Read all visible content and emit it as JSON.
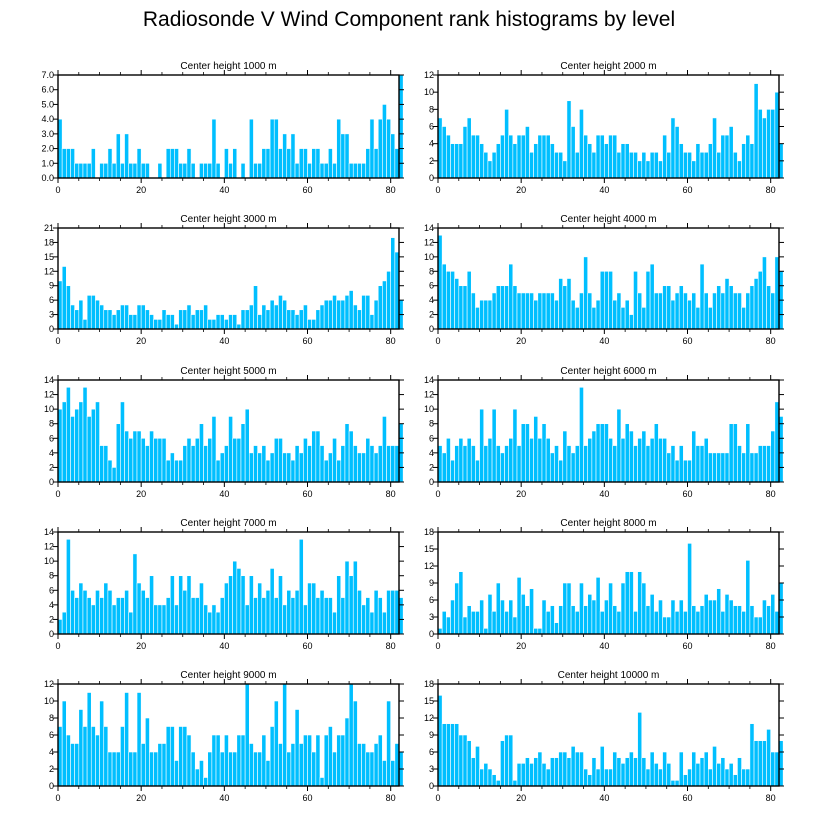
{
  "figure_title": "Radiosonde V Wind Component rank histograms by level",
  "colors": {
    "bar_fill": "#00bfff",
    "bar_stroke": "#ffffff",
    "axis": "#000000"
  },
  "chart_data": [
    {
      "type": "bar",
      "title": "Center height 1000 m",
      "xlim": [
        0,
        82
      ],
      "xticks": [
        0,
        20,
        40,
        60,
        80
      ],
      "ylim": [
        0,
        7
      ],
      "yticks": [
        "0.0",
        "1.0",
        "2.0",
        "3.0",
        "4.0",
        "5.0",
        "6.0",
        "7.0"
      ],
      "y_axis_side": "left",
      "values": [
        4,
        2,
        2,
        2,
        1,
        1,
        1,
        1,
        2,
        0,
        1,
        1,
        2,
        1,
        3,
        1,
        3,
        1,
        1,
        2,
        1,
        1,
        0,
        0,
        1,
        0,
        2,
        2,
        2,
        1,
        1,
        2,
        1,
        0,
        1,
        1,
        1,
        4,
        1,
        0,
        2,
        1,
        2,
        0,
        1,
        0,
        4,
        1,
        1,
        2,
        2,
        4,
        4,
        2,
        3,
        2,
        3,
        1,
        2,
        2,
        1,
        2,
        2,
        1,
        1,
        2,
        1,
        4,
        3,
        3,
        1,
        1,
        1,
        1,
        2,
        4,
        2,
        4,
        5,
        4,
        3,
        2,
        7
      ]
    },
    {
      "type": "bar",
      "title": "Center height 2000 m",
      "xlim": [
        0,
        82
      ],
      "xticks": [
        0,
        20,
        40,
        60,
        80
      ],
      "ylim": [
        0,
        12
      ],
      "yticks": [
        "0",
        "2",
        "4",
        "6",
        "8",
        "10",
        "12"
      ],
      "y_axis_side": "right",
      "values": [
        7,
        6,
        5,
        4,
        4,
        4,
        6,
        7,
        5,
        5,
        4,
        3,
        2,
        3,
        4,
        5,
        8,
        5,
        4,
        5,
        5,
        6,
        3,
        4,
        5,
        5,
        5,
        4,
        3,
        3,
        2,
        9,
        6,
        3,
        8,
        5,
        4,
        3,
        5,
        5,
        4,
        5,
        5,
        3,
        4,
        4,
        3,
        3,
        2,
        3,
        2,
        3,
        3,
        2,
        5,
        3,
        7,
        6,
        4,
        3,
        3,
        2,
        4,
        3,
        3,
        4,
        7,
        3,
        5,
        5,
        6,
        3,
        2,
        4,
        5,
        4,
        11,
        8,
        7,
        8,
        8,
        10,
        4
      ]
    },
    {
      "type": "bar",
      "title": "Center height 3000 m",
      "xlim": [
        0,
        82
      ],
      "xticks": [
        0,
        20,
        40,
        60,
        80
      ],
      "ylim": [
        0,
        21
      ],
      "yticks": [
        "0",
        "3",
        "6",
        "9",
        "12",
        "15",
        "18",
        "21"
      ],
      "y_axis_side": "left",
      "values": [
        10,
        13,
        9,
        5,
        4,
        6,
        2,
        7,
        7,
        6,
        5,
        4,
        4,
        3,
        4,
        5,
        5,
        3,
        3,
        5,
        5,
        4,
        3,
        2,
        2,
        4,
        3,
        3,
        1,
        4,
        4,
        5,
        3,
        4,
        4,
        5,
        2,
        2,
        3,
        3,
        2,
        3,
        3,
        1,
        4,
        4,
        5,
        9,
        3,
        5,
        4,
        6,
        5,
        7,
        6,
        4,
        4,
        3,
        4,
        5,
        2,
        2,
        4,
        5,
        6,
        6,
        7,
        6,
        6,
        7,
        8,
        5,
        4,
        7,
        7,
        3,
        6,
        9,
        10,
        12,
        19,
        16,
        6
      ]
    },
    {
      "type": "bar",
      "title": "Center height 4000 m",
      "xlim": [
        0,
        82
      ],
      "xticks": [
        0,
        20,
        40,
        60,
        80
      ],
      "ylim": [
        0,
        14
      ],
      "yticks": [
        "0",
        "2",
        "4",
        "6",
        "8",
        "10",
        "12",
        "14"
      ],
      "y_axis_side": "right",
      "values": [
        13,
        9,
        8,
        8,
        7,
        6,
        6,
        8,
        5,
        3,
        4,
        4,
        4,
        5,
        6,
        6,
        6,
        9,
        6,
        5,
        5,
        5,
        5,
        4,
        5,
        5,
        5,
        5,
        4,
        7,
        6,
        7,
        4,
        3,
        5,
        10,
        5,
        3,
        4,
        8,
        8,
        8,
        4,
        5,
        3,
        4,
        2,
        8,
        5,
        3,
        8,
        9,
        5,
        5,
        6,
        6,
        4,
        5,
        6,
        5,
        4,
        5,
        3,
        9,
        5,
        3,
        5,
        6,
        5,
        7,
        6,
        5,
        5,
        3,
        5,
        6,
        7,
        8,
        10,
        6,
        5,
        10,
        8
      ]
    },
    {
      "type": "bar",
      "title": "Center height 5000 m",
      "xlim": [
        0,
        82
      ],
      "xticks": [
        0,
        20,
        40,
        60,
        80
      ],
      "ylim": [
        0,
        14
      ],
      "yticks": [
        "0",
        "2",
        "4",
        "6",
        "8",
        "10",
        "12",
        "14"
      ],
      "y_axis_side": "left",
      "values": [
        10,
        11,
        13,
        9,
        10,
        11,
        13,
        9,
        10,
        11,
        5,
        5,
        3,
        2,
        8,
        11,
        7,
        6,
        7,
        7,
        6,
        5,
        7,
        6,
        6,
        6,
        3,
        4,
        3,
        3,
        5,
        6,
        5,
        6,
        8,
        5,
        6,
        9,
        3,
        4,
        5,
        9,
        6,
        6,
        8,
        10,
        4,
        5,
        4,
        5,
        3,
        4,
        6,
        6,
        4,
        4,
        3,
        5,
        4,
        6,
        5,
        7,
        7,
        5,
        3,
        4,
        6,
        3,
        5,
        8,
        7,
        5,
        4,
        4,
        6,
        5,
        4,
        5,
        9,
        5,
        5,
        5,
        8
      ]
    },
    {
      "type": "bar",
      "title": "Center height 6000 m",
      "xlim": [
        0,
        82
      ],
      "xticks": [
        0,
        20,
        40,
        60,
        80
      ],
      "ylim": [
        0,
        14
      ],
      "yticks": [
        "0",
        "2",
        "4",
        "6",
        "8",
        "10",
        "12",
        "14"
      ],
      "y_axis_side": "right",
      "values": [
        5,
        4,
        6,
        3,
        5,
        6,
        5,
        6,
        5,
        3,
        10,
        5,
        6,
        10,
        5,
        4,
        5,
        6,
        10,
        5,
        8,
        8,
        6,
        9,
        6,
        8,
        6,
        4,
        5,
        3,
        7,
        5,
        4,
        5,
        13,
        5,
        6,
        7,
        8,
        8,
        8,
        6,
        5,
        10,
        6,
        8,
        7,
        5,
        6,
        7,
        5,
        6,
        8,
        6,
        6,
        4,
        5,
        3,
        5,
        3,
        3,
        7,
        5,
        5,
        6,
        4,
        4,
        4,
        4,
        4,
        8,
        8,
        5,
        4,
        8,
        4,
        4,
        5,
        5,
        5,
        7,
        11,
        9
      ]
    },
    {
      "type": "bar",
      "title": "Center height 7000 m",
      "xlim": [
        0,
        82
      ],
      "xticks": [
        0,
        20,
        40,
        60,
        80
      ],
      "ylim": [
        0,
        14
      ],
      "yticks": [
        "0",
        "2",
        "4",
        "6",
        "8",
        "10",
        "12",
        "14"
      ],
      "y_axis_side": "left",
      "values": [
        2,
        3,
        13,
        6,
        5,
        7,
        6,
        5,
        4,
        6,
        5,
        7,
        6,
        4,
        5,
        5,
        6,
        3,
        11,
        7,
        6,
        5,
        8,
        4,
        4,
        4,
        5,
        8,
        4,
        8,
        6,
        8,
        5,
        5,
        7,
        4,
        3,
        4,
        3,
        5,
        7,
        8,
        10,
        9,
        8,
        4,
        8,
        5,
        7,
        5,
        6,
        9,
        5,
        8,
        4,
        6,
        5,
        6,
        13,
        4,
        7,
        7,
        5,
        6,
        5,
        5,
        3,
        8,
        5,
        10,
        8,
        10,
        6,
        4,
        5,
        3,
        6,
        5,
        3,
        6,
        6,
        6,
        5
      ]
    },
    {
      "type": "bar",
      "title": "Center height 8000 m",
      "xlim": [
        0,
        82
      ],
      "xticks": [
        0,
        20,
        40,
        60,
        80
      ],
      "ylim": [
        0,
        18
      ],
      "yticks": [
        "0",
        "3",
        "6",
        "9",
        "12",
        "15",
        "18"
      ],
      "y_axis_side": "right",
      "values": [
        1,
        4,
        3,
        6,
        9,
        11,
        3,
        5,
        4,
        4,
        6,
        1,
        7,
        4,
        9,
        6,
        4,
        6,
        3,
        10,
        7,
        5,
        8,
        1,
        1,
        6,
        4,
        5,
        2,
        5,
        9,
        9,
        5,
        4,
        9,
        5,
        7,
        6,
        10,
        4,
        6,
        9,
        5,
        4,
        9,
        11,
        11,
        4,
        11,
        9,
        5,
        7,
        4,
        6,
        3,
        3,
        6,
        4,
        6,
        4,
        16,
        5,
        4,
        5,
        7,
        6,
        6,
        8,
        4,
        7,
        6,
        5,
        5,
        4,
        13,
        5,
        3,
        3,
        6,
        5,
        7,
        4,
        9
      ]
    },
    {
      "type": "bar",
      "title": "Center height 9000 m",
      "xlim": [
        0,
        82
      ],
      "xticks": [
        0,
        20,
        40,
        60,
        80
      ],
      "ylim": [
        0,
        12
      ],
      "yticks": [
        "0",
        "2",
        "4",
        "6",
        "8",
        "10",
        "12"
      ],
      "y_axis_side": "left",
      "values": [
        7,
        10,
        6,
        5,
        5,
        9,
        7,
        11,
        7,
        6,
        10,
        7,
        4,
        4,
        4,
        7,
        11,
        4,
        4,
        11,
        5,
        8,
        4,
        4,
        5,
        5,
        7,
        7,
        3,
        7,
        7,
        6,
        4,
        2,
        3,
        1,
        4,
        6,
        6,
        4,
        6,
        4,
        4,
        6,
        6,
        12,
        5,
        4,
        4,
        6,
        3,
        7,
        10,
        5,
        12,
        4,
        5,
        9,
        5,
        6,
        6,
        4,
        6,
        1,
        6,
        7,
        4,
        6,
        6,
        8,
        12,
        10,
        5,
        5,
        4,
        4,
        5,
        6,
        3,
        10,
        3,
        5,
        4
      ]
    },
    {
      "type": "bar",
      "title": "Center height 10000 m",
      "xlim": [
        0,
        82
      ],
      "xticks": [
        0,
        20,
        40,
        60,
        80
      ],
      "ylim": [
        0,
        18
      ],
      "yticks": [
        "0",
        "3",
        "6",
        "9",
        "12",
        "15",
        "18"
      ],
      "y_axis_side": "right",
      "values": [
        16,
        11,
        11,
        11,
        11,
        9,
        9,
        8,
        5,
        7,
        3,
        4,
        3,
        2,
        1,
        8,
        9,
        9,
        1,
        4,
        4,
        5,
        4,
        5,
        6,
        4,
        3,
        5,
        5,
        6,
        6,
        5,
        7,
        6,
        6,
        3,
        2,
        5,
        3,
        7,
        3,
        3,
        6,
        5,
        4,
        5,
        6,
        5,
        13,
        5,
        3,
        6,
        4,
        3,
        6,
        4,
        1,
        1,
        6,
        2,
        3,
        6,
        4,
        5,
        6,
        3,
        7,
        4,
        5,
        3,
        4,
        2,
        5,
        3,
        3,
        11,
        8,
        8,
        8,
        10,
        6,
        6,
        8
      ]
    }
  ]
}
